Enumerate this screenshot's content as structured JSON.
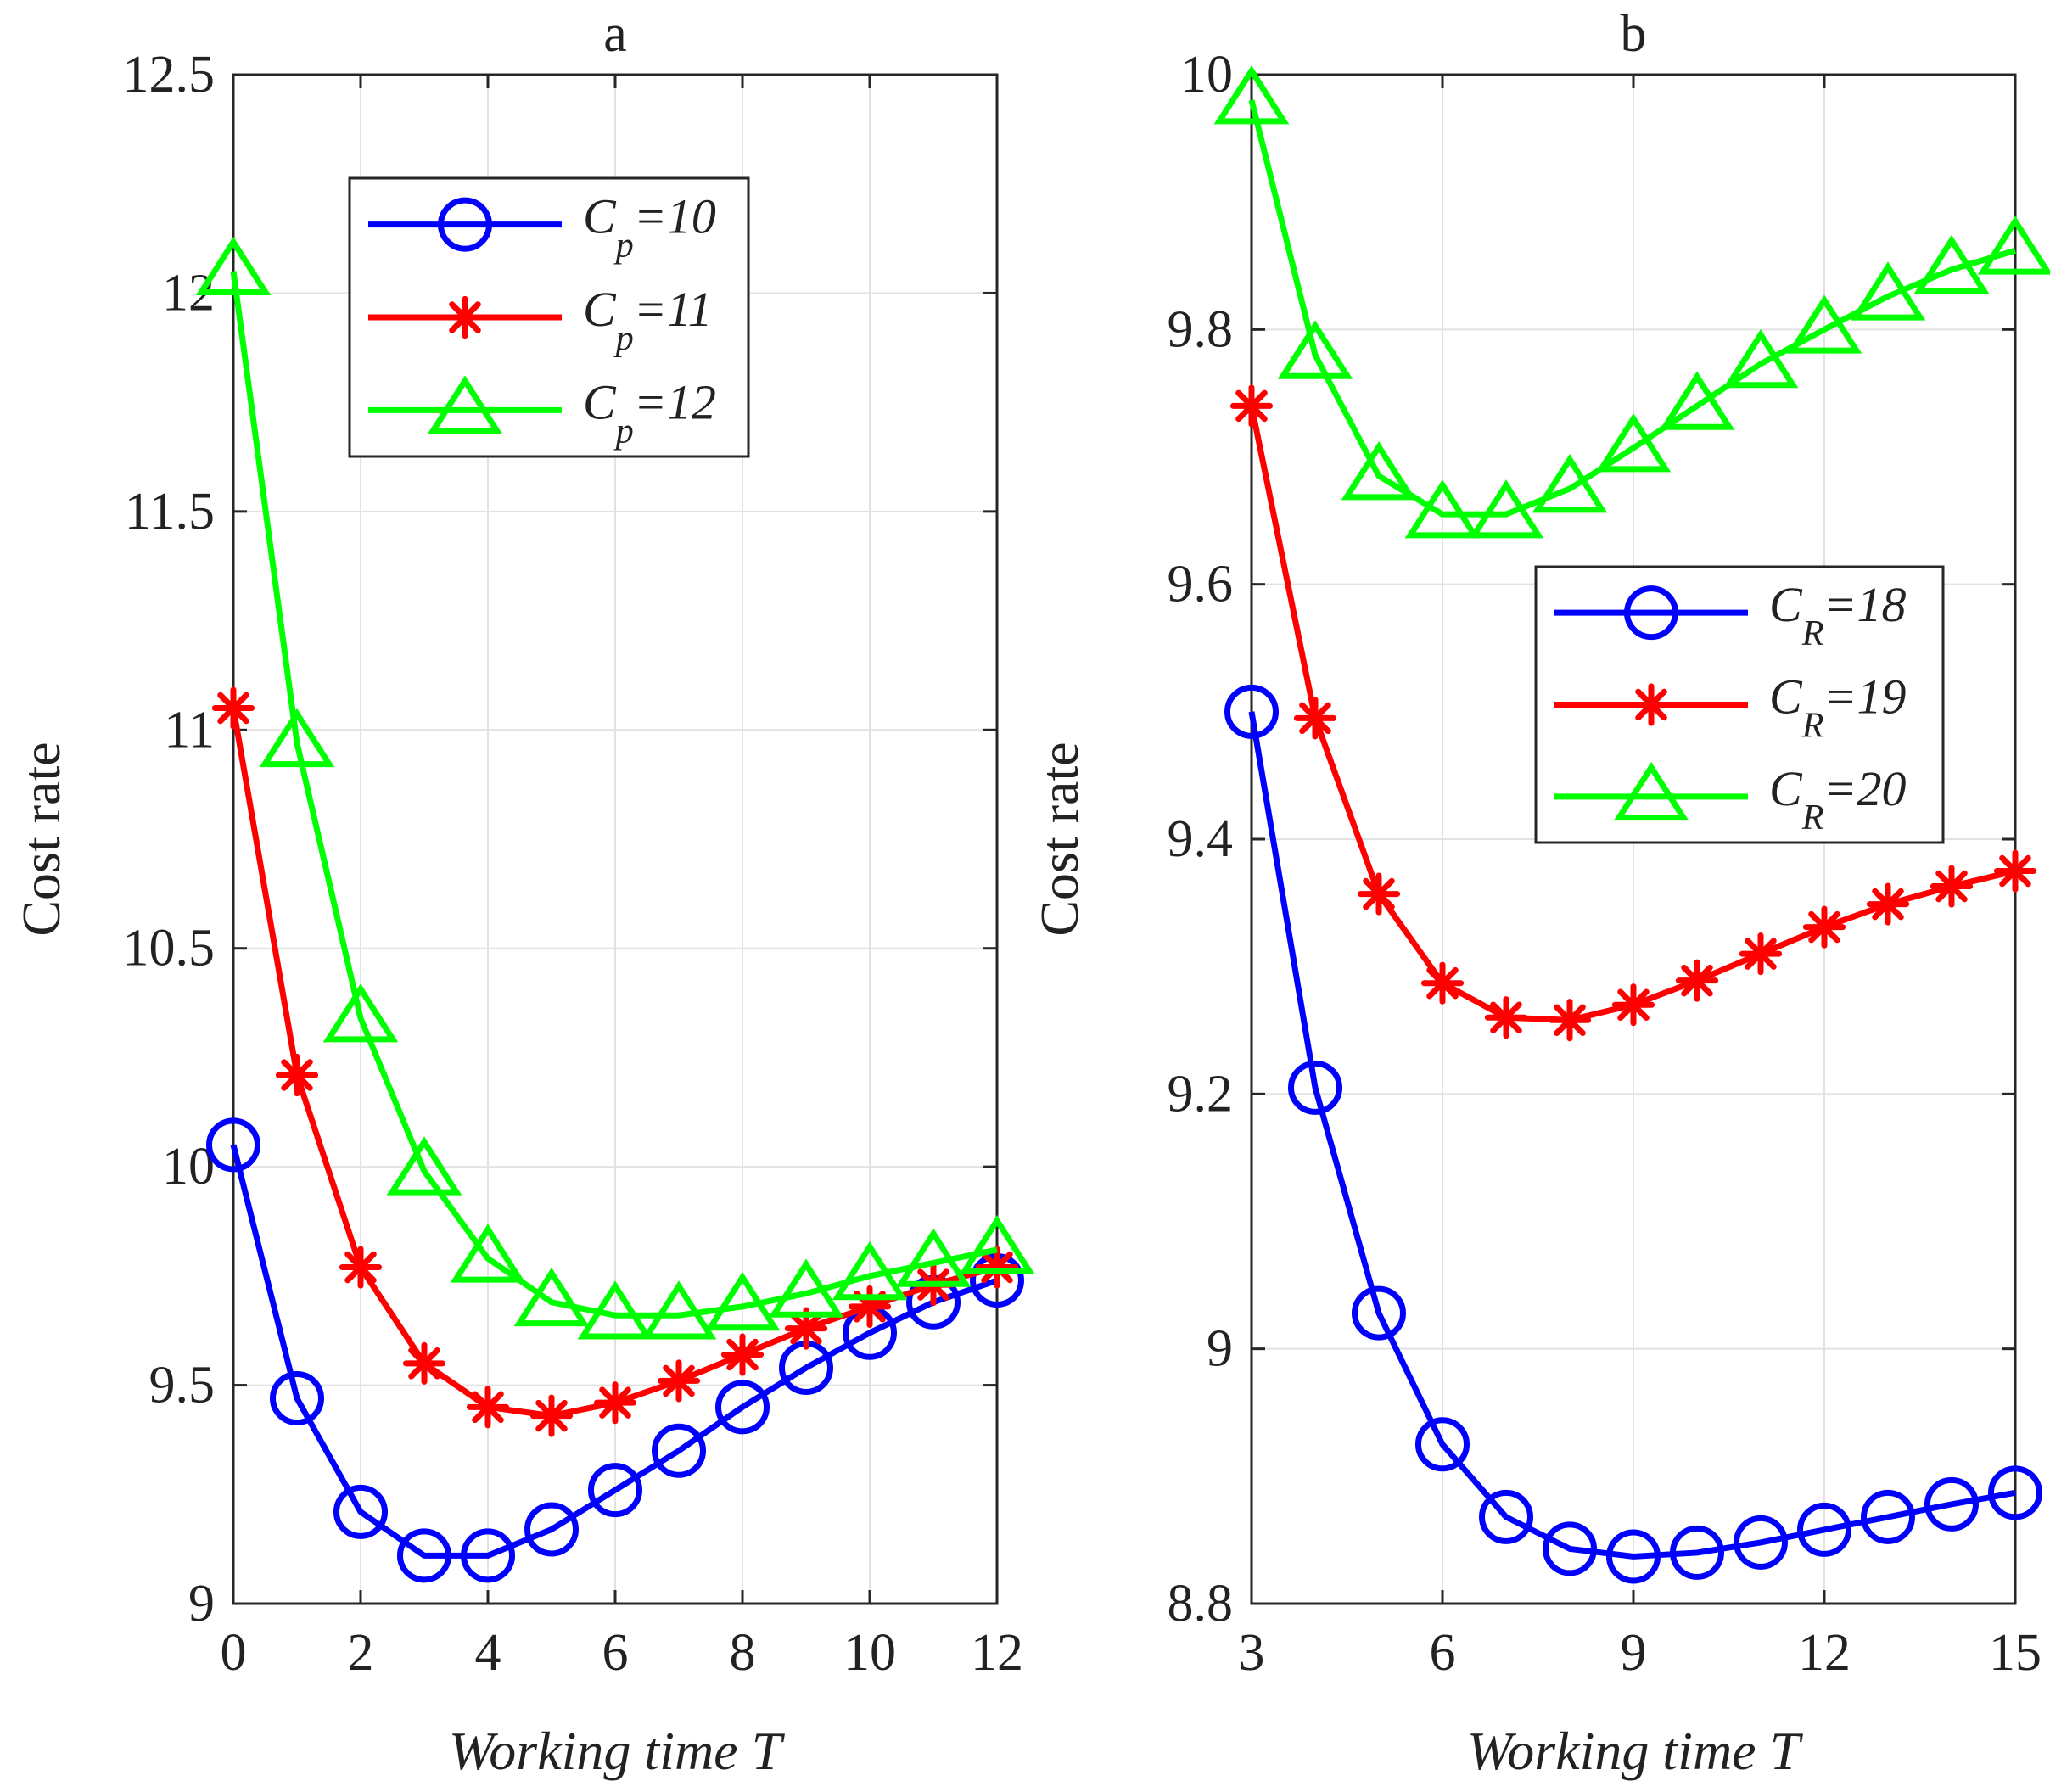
{
  "chart_data": [
    {
      "type": "line",
      "title": "a",
      "xlabel": "Working time T",
      "ylabel": "Cost rate",
      "xlim": [
        0,
        12
      ],
      "ylim": [
        9,
        12.5
      ],
      "xticks": [
        "0",
        "2",
        "4",
        "6",
        "8",
        "10",
        "12"
      ],
      "yticks": [
        "9",
        "9.5",
        "10",
        "10.5",
        "11",
        "11.5",
        "12",
        "12.5"
      ],
      "grid": true,
      "legend_position": "upper-middle",
      "x": [
        0,
        1,
        2,
        3,
        4,
        5,
        6,
        7,
        8,
        9,
        10,
        11,
        12
      ],
      "series": [
        {
          "name_main": "C",
          "name_sub": "p",
          "name_rest": "=10",
          "color": "#0000ff",
          "marker": "circle",
          "values": [
            10.05,
            9.47,
            9.21,
            9.11,
            9.11,
            9.17,
            9.26,
            9.35,
            9.45,
            9.54,
            9.62,
            9.69,
            9.74
          ]
        },
        {
          "name_main": "C",
          "name_sub": "p",
          "name_rest": "=11",
          "color": "#ff0000",
          "marker": "star",
          "values": [
            11.05,
            10.21,
            9.77,
            9.55,
            9.45,
            9.43,
            9.46,
            9.51,
            9.57,
            9.63,
            9.68,
            9.73,
            9.77
          ]
        },
        {
          "name_main": "C",
          "name_sub": "p",
          "name_rest": "=12",
          "color": "#00ff00",
          "marker": "triangle",
          "values": [
            12.05,
            10.97,
            10.34,
            9.99,
            9.79,
            9.69,
            9.66,
            9.66,
            9.68,
            9.71,
            9.75,
            9.78,
            9.81
          ]
        }
      ]
    },
    {
      "type": "line",
      "title": "b",
      "xlabel": "Working time T",
      "ylabel": "Cost rate",
      "xlim": [
        3,
        15
      ],
      "ylim": [
        8.8,
        10
      ],
      "xticks": [
        "3",
        "6",
        "9",
        "12",
        "15"
      ],
      "yticks": [
        "8.8",
        "9",
        "9.2",
        "9.4",
        "9.6",
        "9.8",
        "10"
      ],
      "grid": true,
      "legend_position": "right-middle",
      "x": [
        3,
        4,
        5,
        6,
        7,
        8,
        9,
        10,
        11,
        12,
        13,
        14,
        15
      ],
      "series": [
        {
          "name_main": "C",
          "name_sub": "R",
          "name_rest": "=18",
          "color": "#0000ff",
          "marker": "circle",
          "values": [
            9.5,
            9.205,
            9.028,
            8.925,
            8.868,
            8.843,
            8.837,
            8.84,
            8.848,
            8.858,
            8.868,
            8.878,
            8.887
          ]
        },
        {
          "name_main": "C",
          "name_sub": "R",
          "name_rest": "=19",
          "color": "#ff0000",
          "marker": "star",
          "values": [
            9.74,
            9.495,
            9.357,
            9.287,
            9.26,
            9.258,
            9.27,
            9.289,
            9.31,
            9.331,
            9.349,
            9.363,
            9.375
          ]
        },
        {
          "name_main": "C",
          "name_sub": "R",
          "name_rest": "=20",
          "color": "#00ff00",
          "marker": "triangle",
          "values": [
            9.98,
            9.78,
            9.685,
            9.655,
            9.655,
            9.675,
            9.707,
            9.74,
            9.773,
            9.8,
            9.826,
            9.847,
            9.862
          ]
        }
      ]
    }
  ]
}
